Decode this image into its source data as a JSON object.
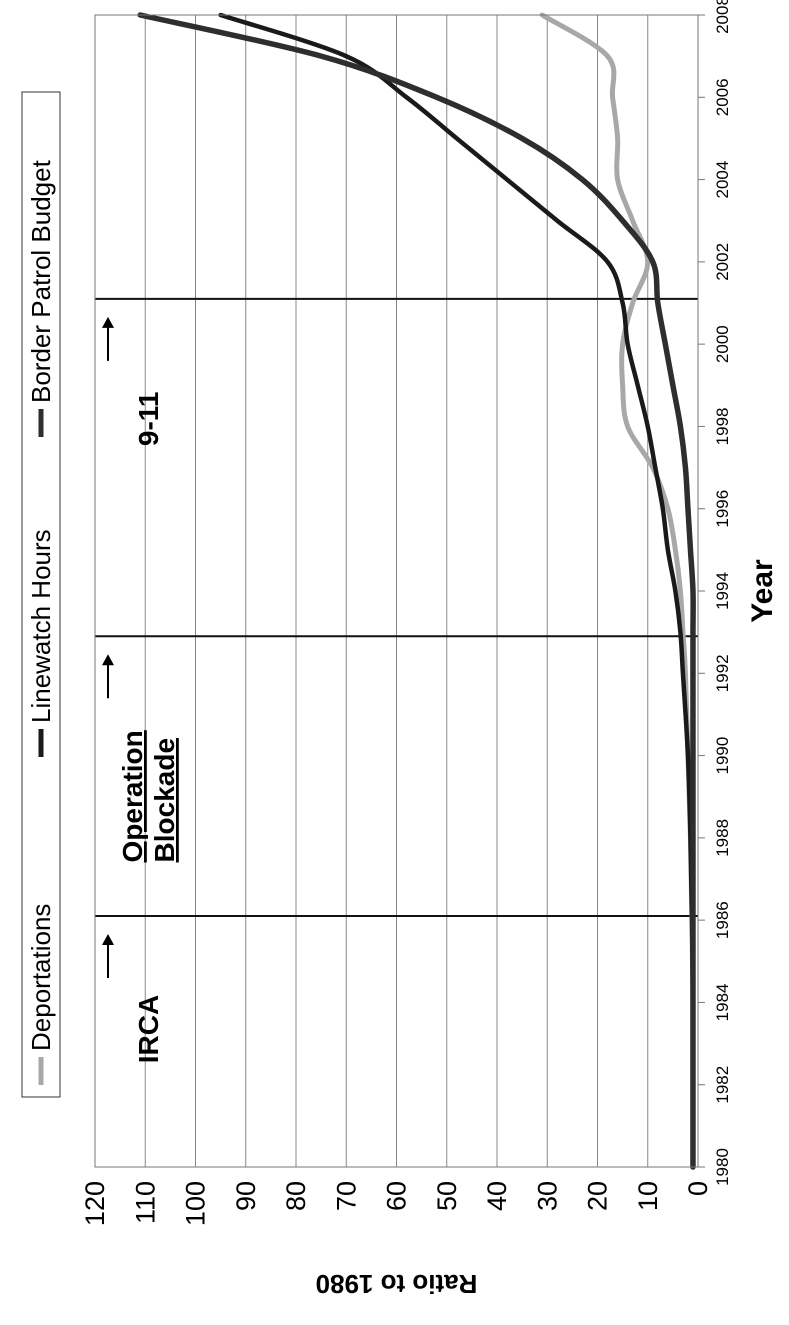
{
  "chart_data": {
    "type": "line",
    "xlabel": "Year",
    "ylabel": "Ratio to 1980",
    "xlim": [
      1980,
      2008
    ],
    "ylim": [
      0,
      120
    ],
    "x_ticks": [
      1980,
      1982,
      1984,
      1986,
      1988,
      1990,
      1992,
      1994,
      1996,
      1998,
      2000,
      2002,
      2004,
      2006,
      2008
    ],
    "y_ticks": [
      0,
      10,
      20,
      30,
      40,
      50,
      60,
      70,
      80,
      90,
      100,
      110,
      120
    ],
    "grid": true,
    "legend_position": "top",
    "orientation": "rotated-90",
    "series": [
      {
        "name": "Deportations",
        "color": "#a8a8a8",
        "x": [
          1980,
          1982,
          1984,
          1986,
          1988,
          1990,
          1992,
          1993,
          1994,
          1995,
          1996,
          1997,
          1998,
          1999,
          2000,
          2001,
          2002,
          2003,
          2004,
          2005,
          2006,
          2007,
          2008
        ],
        "y": [
          1,
          1,
          1,
          1.2,
          1.5,
          2,
          2.5,
          3,
          3.5,
          4.5,
          6,
          9,
          14,
          15,
          15,
          13,
          10,
          13,
          16,
          16,
          17,
          18,
          31
        ]
      },
      {
        "name": "Linewatch Hours",
        "color": "#1a1a1a",
        "x": [
          1980,
          1982,
          1984,
          1986,
          1988,
          1990,
          1992,
          1993,
          1994,
          1995,
          1996,
          1997,
          1998,
          1999,
          2000,
          2001,
          2002,
          2003,
          2004,
          2005,
          2006,
          2007,
          2008
        ],
        "y": [
          1,
          1,
          1,
          1.2,
          1.5,
          2,
          3,
          3.5,
          4.5,
          6,
          7,
          8.5,
          10,
          12,
          14,
          15,
          18,
          28,
          38,
          48,
          58,
          70,
          95
        ]
      },
      {
        "name": "Border Patrol Budget",
        "color": "#2e2e2e",
        "x": [
          1980,
          1982,
          1984,
          1986,
          1988,
          1990,
          1992,
          1993,
          1994,
          1995,
          1996,
          1997,
          1998,
          1999,
          2000,
          2001,
          2002,
          2003,
          2004,
          2005,
          2006,
          2007,
          2008
        ],
        "y": [
          1,
          1,
          1,
          1,
          1,
          1,
          1,
          1,
          1,
          1.5,
          2,
          2.5,
          3.5,
          5,
          6.5,
          8,
          9,
          15,
          23,
          35,
          52,
          75,
          111
        ]
      }
    ],
    "annotations": [
      {
        "x": 1986.1,
        "lines": [
          "IRCA"
        ],
        "underline": false
      },
      {
        "x": 1992.9,
        "lines": [
          "Operation",
          "Blockade"
        ],
        "underline": true
      },
      {
        "x": 2001.1,
        "lines": [
          "9-11"
        ],
        "underline": false
      }
    ]
  }
}
